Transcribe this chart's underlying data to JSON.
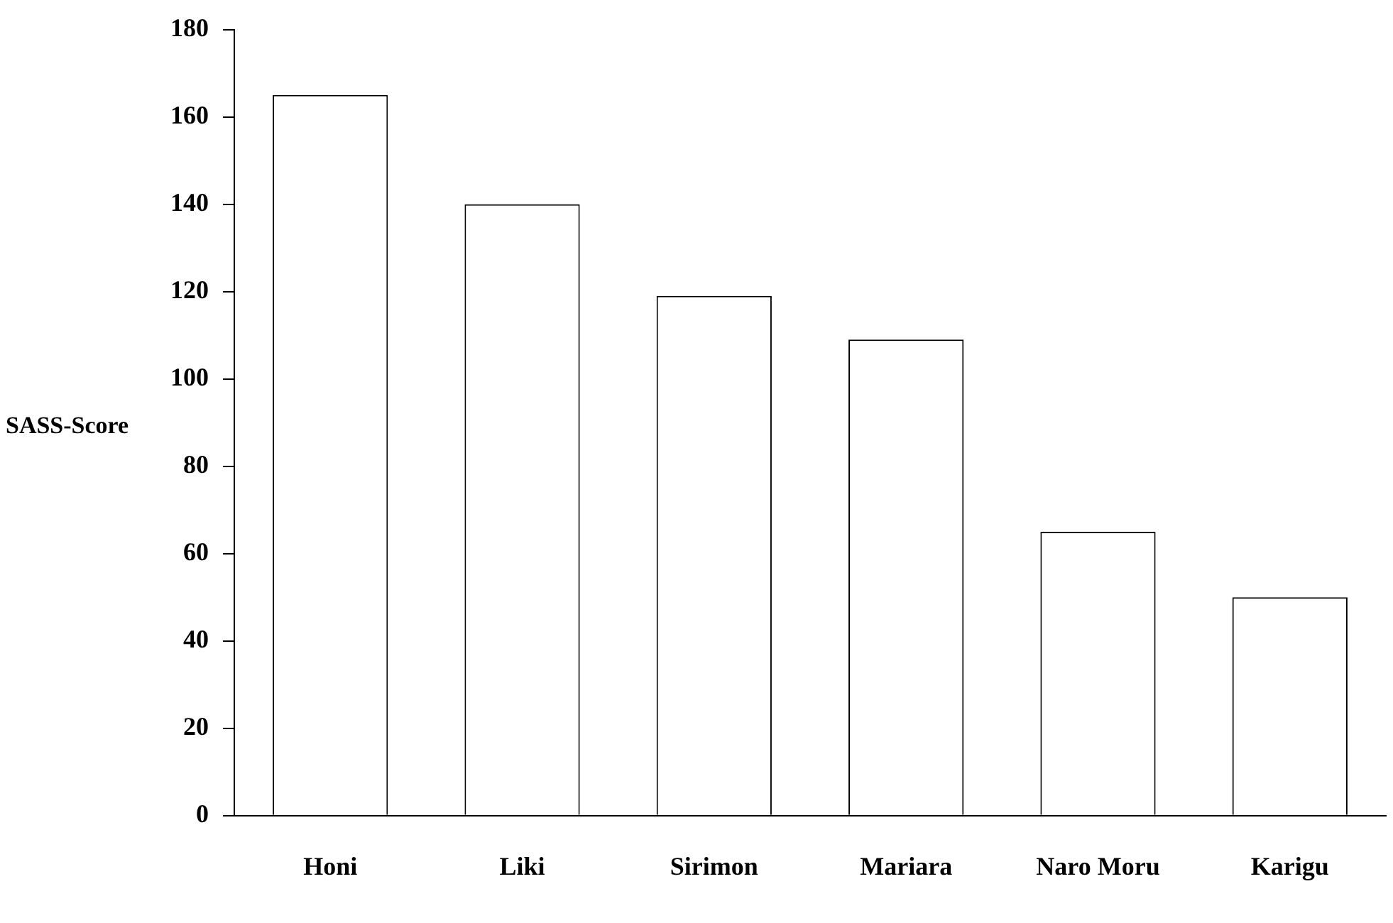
{
  "chart_data": {
    "type": "bar",
    "ylabel": "SASS-Score",
    "categories": [
      "Honi",
      "Liki",
      "Sirimon",
      "Mariara",
      "Naro Moru",
      "Karigu"
    ],
    "values": [
      165,
      140,
      119,
      109,
      65,
      50
    ],
    "color": "#ffffff",
    "ylim": [
      0,
      180
    ],
    "yticks": [
      0,
      20,
      40,
      60,
      80,
      100,
      120,
      140,
      160,
      180
    ],
    "grid": false,
    "legend": false
  }
}
